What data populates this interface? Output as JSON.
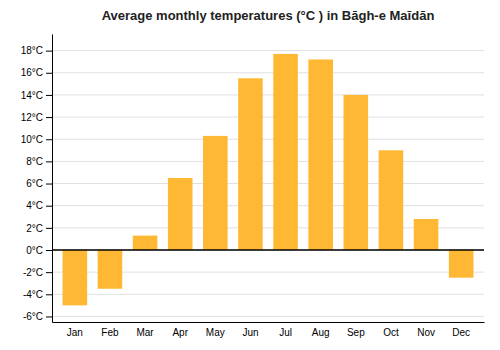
{
  "chart_data": {
    "type": "bar",
    "title": "Average monthly temperatures (°C ) in Bāgh-e Maīdān",
    "categories": [
      "Jan",
      "Feb",
      "Mar",
      "Apr",
      "May",
      "Jun",
      "Jul",
      "Aug",
      "Sep",
      "Oct",
      "Nov",
      "Dec"
    ],
    "values": [
      -5.0,
      -3.5,
      1.3,
      6.5,
      10.3,
      15.5,
      17.7,
      17.2,
      14.0,
      9.0,
      2.8,
      -2.5
    ],
    "color": "#FFB833",
    "ylim": [
      -6.5,
      19.5
    ],
    "yticks": [
      {
        "value": -6,
        "label": "-6°C"
      },
      {
        "value": -4,
        "label": "-4°C"
      },
      {
        "value": -2,
        "label": "-2°C"
      },
      {
        "value": 0,
        "label": "0°C"
      },
      {
        "value": 2,
        "label": "2°C"
      },
      {
        "value": 4,
        "label": "4°C"
      },
      {
        "value": 6,
        "label": "6°C"
      },
      {
        "value": 8,
        "label": "8°C"
      },
      {
        "value": 10,
        "label": "10°C"
      },
      {
        "value": 12,
        "label": "12°C"
      },
      {
        "value": 14,
        "label": "14°C"
      },
      {
        "value": 16,
        "label": "16°C"
      },
      {
        "value": 18,
        "label": "18°C"
      }
    ],
    "grid": true
  }
}
